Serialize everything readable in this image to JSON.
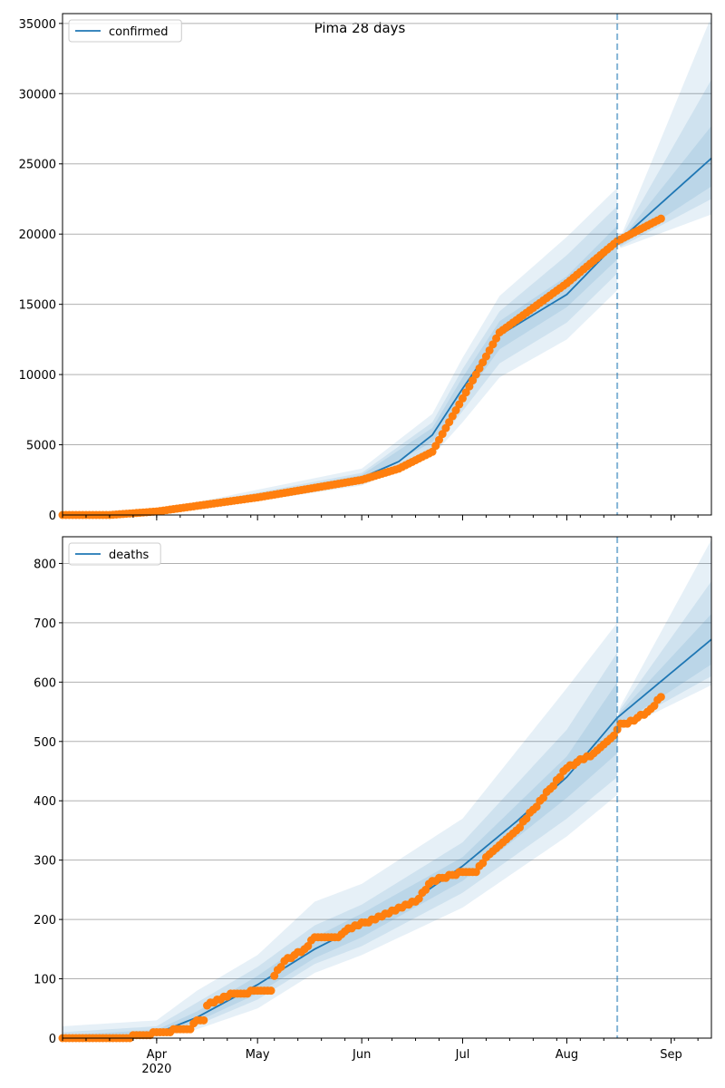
{
  "title": "Pima 28 days",
  "start_date": "2020-03-04",
  "x_day_range": [
    0,
    193
  ],
  "forecast_day": 165,
  "x_ticks": [
    {
      "day": 28,
      "label": "Apr",
      "sub": "2020"
    },
    {
      "day": 58,
      "label": "May"
    },
    {
      "day": 89,
      "label": "Jun"
    },
    {
      "day": 119,
      "label": "Jul"
    },
    {
      "day": 150,
      "label": "Aug"
    },
    {
      "day": 181,
      "label": "Sep"
    }
  ],
  "colors": {
    "model": "#1f77b4",
    "observed": "#ff7f0e",
    "band": "#1f77b4",
    "grid": "#b0b0b0"
  },
  "chart_data": [
    {
      "type": "line",
      "legend": "confirmed",
      "legend_position": "top-left",
      "ylim": [
        0,
        35700
      ],
      "yticks": [
        0,
        5000,
        10000,
        15000,
        20000,
        25000,
        30000,
        35000
      ],
      "grid": true,
      "model": [
        [
          0,
          0
        ],
        [
          14,
          10
        ],
        [
          28,
          200
        ],
        [
          58,
          1300
        ],
        [
          89,
          2650
        ],
        [
          100,
          3800
        ],
        [
          110,
          5700
        ],
        [
          119,
          9000
        ],
        [
          130,
          12800
        ],
        [
          150,
          15700
        ],
        [
          165,
          19400
        ],
        [
          193,
          25400
        ]
      ],
      "observed": [
        [
          0,
          0
        ],
        [
          14,
          0
        ],
        [
          28,
          250
        ],
        [
          58,
          1250
        ],
        [
          89,
          2500
        ],
        [
          100,
          3300
        ],
        [
          110,
          4500
        ],
        [
          119,
          8300
        ],
        [
          130,
          13000
        ],
        [
          150,
          16500
        ],
        [
          165,
          19500
        ],
        [
          178,
          21100
        ]
      ],
      "bands": [
        [
          [
            0,
            0,
            30
          ],
          [
            28,
            120,
            330
          ],
          [
            58,
            1000,
            1800
          ],
          [
            89,
            2100,
            3300
          ],
          [
            110,
            4200,
            7200
          ],
          [
            119,
            6600,
            11200
          ],
          [
            130,
            9800,
            15600
          ],
          [
            150,
            12500,
            19800
          ],
          [
            165,
            16000,
            23300
          ],
          [
            166,
            19000,
            19800
          ],
          [
            193,
            21400,
            35500
          ]
        ],
        [
          [
            0,
            0,
            15
          ],
          [
            28,
            150,
            280
          ],
          [
            58,
            1100,
            1600
          ],
          [
            89,
            2300,
            3000
          ],
          [
            110,
            4700,
            6600
          ],
          [
            119,
            7400,
            10400
          ],
          [
            130,
            10800,
            14500
          ],
          [
            150,
            13700,
            18500
          ],
          [
            165,
            17200,
            22000
          ],
          [
            166,
            19100,
            19700
          ],
          [
            193,
            22500,
            31000
          ]
        ],
        [
          [
            0,
            0,
            8
          ],
          [
            28,
            170,
            240
          ],
          [
            58,
            1200,
            1450
          ],
          [
            89,
            2450,
            2850
          ],
          [
            110,
            5200,
            6200
          ],
          [
            119,
            8200,
            9800
          ],
          [
            130,
            11800,
            13800
          ],
          [
            150,
            14800,
            17000
          ],
          [
            165,
            18200,
            20600
          ],
          [
            166,
            19200,
            19600
          ],
          [
            193,
            23400,
            27700
          ]
        ]
      ]
    },
    {
      "type": "line",
      "legend": "deaths",
      "legend_position": "top-left",
      "ylim": [
        0,
        845
      ],
      "yticks": [
        0,
        100,
        200,
        300,
        400,
        500,
        600,
        700,
        800
      ],
      "grid": true,
      "model": [
        [
          0,
          0
        ],
        [
          20,
          2
        ],
        [
          28,
          8
        ],
        [
          40,
          35
        ],
        [
          58,
          90
        ],
        [
          75,
          150
        ],
        [
          89,
          190
        ],
        [
          105,
          235
        ],
        [
          119,
          290
        ],
        [
          135,
          365
        ],
        [
          150,
          440
        ],
        [
          165,
          540
        ],
        [
          193,
          672
        ]
      ],
      "observed": [
        [
          0,
          2
        ],
        [
          20,
          2
        ],
        [
          26,
          5
        ],
        [
          28,
          10
        ],
        [
          38,
          15
        ],
        [
          40,
          30
        ],
        [
          42,
          30
        ],
        [
          43,
          55
        ],
        [
          50,
          75
        ],
        [
          62,
          80
        ],
        [
          63,
          105
        ],
        [
          66,
          130
        ],
        [
          72,
          150
        ],
        [
          75,
          170
        ],
        [
          82,
          172
        ],
        [
          85,
          185
        ],
        [
          95,
          205
        ],
        [
          105,
          230
        ],
        [
          110,
          265
        ],
        [
          119,
          280
        ],
        [
          123,
          282
        ],
        [
          127,
          310
        ],
        [
          135,
          350
        ],
        [
          140,
          385
        ],
        [
          150,
          455
        ],
        [
          158,
          480
        ],
        [
          164,
          510
        ],
        [
          166,
          528
        ],
        [
          170,
          535
        ],
        [
          175,
          555
        ],
        [
          178,
          575
        ]
      ],
      "bands": [
        [
          [
            0,
            0,
            20
          ],
          [
            28,
            2,
            30
          ],
          [
            40,
            15,
            80
          ],
          [
            58,
            50,
            140
          ],
          [
            75,
            110,
            230
          ],
          [
            89,
            140,
            260
          ],
          [
            119,
            220,
            370
          ],
          [
            150,
            340,
            590
          ],
          [
            165,
            410,
            700
          ],
          [
            166,
            520,
            560
          ],
          [
            193,
            595,
            840
          ]
        ],
        [
          [
            0,
            0,
            10
          ],
          [
            28,
            4,
            20
          ],
          [
            40,
            22,
            60
          ],
          [
            58,
            65,
            120
          ],
          [
            75,
            125,
            190
          ],
          [
            89,
            155,
            225
          ],
          [
            119,
            245,
            330
          ],
          [
            150,
            370,
            520
          ],
          [
            165,
            440,
            650
          ],
          [
            166,
            525,
            555
          ],
          [
            193,
            610,
            770
          ]
        ],
        [
          [
            0,
            0,
            5
          ],
          [
            28,
            6,
            14
          ],
          [
            40,
            28,
            45
          ],
          [
            58,
            75,
            105
          ],
          [
            75,
            135,
            170
          ],
          [
            89,
            170,
            210
          ],
          [
            119,
            265,
            305
          ],
          [
            150,
            405,
            475
          ],
          [
            165,
            480,
            600
          ],
          [
            166,
            530,
            550
          ],
          [
            193,
            630,
            715
          ]
        ]
      ]
    }
  ]
}
